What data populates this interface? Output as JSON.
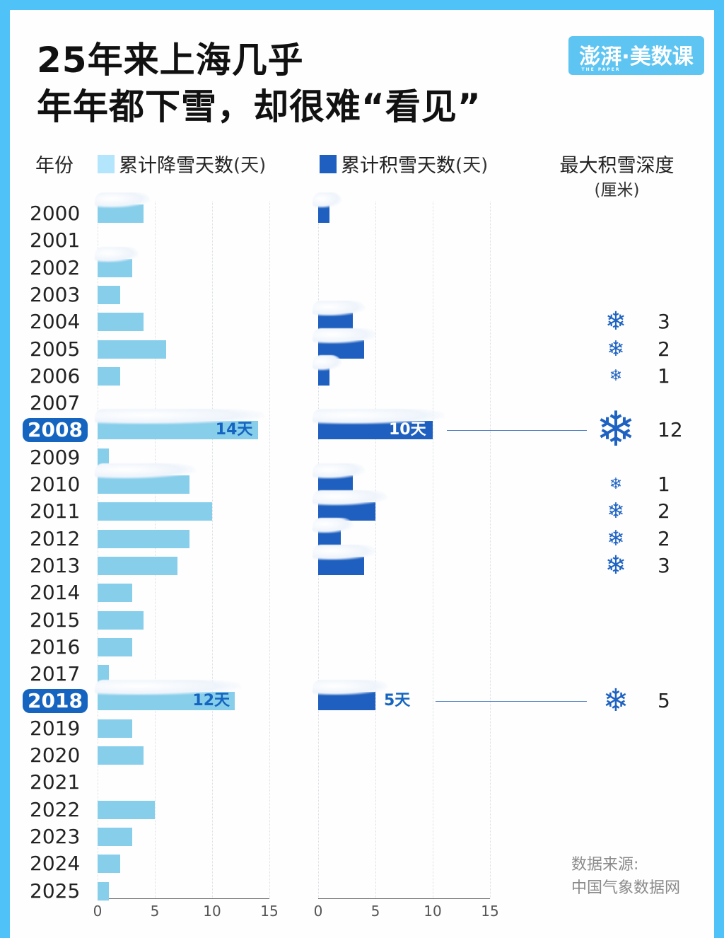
{
  "title": {
    "line1": "25年来上海几乎",
    "line2": "年年都下雪，却很难“看见”"
  },
  "logo": {
    "text": "澎湃·美数课",
    "sub": "THE PAPER"
  },
  "headers": {
    "year": "年份",
    "snowfall": "累计降雪天数",
    "snowfall_unit": "(天)",
    "cover": "累计积雪天数",
    "cover_unit": "(天)",
    "depth": "最大积雪深度",
    "depth_unit": "(厘米)"
  },
  "colors": {
    "snowfall": "#87ceeb",
    "cover": "#1e5fbf",
    "highlight": "#1565c0",
    "flake": "#1e63c2",
    "frame": "#4fc3f7"
  },
  "source": {
    "line1": "数据来源:",
    "line2": "中国气象数据网"
  },
  "chart_data": {
    "type": "bar",
    "title": "25年来上海几乎年年都下雪，却很难“看见”",
    "categories": [
      "2000",
      "2001",
      "2002",
      "2003",
      "2004",
      "2005",
      "2006",
      "2007",
      "2008",
      "2009",
      "2010",
      "2011",
      "2012",
      "2013",
      "2014",
      "2015",
      "2016",
      "2017",
      "2018",
      "2019",
      "2020",
      "2021",
      "2022",
      "2023",
      "2024",
      "2025"
    ],
    "series": [
      {
        "name": "累计降雪天数(天)",
        "values": [
          4,
          0,
          3,
          2,
          4,
          6,
          2,
          0,
          14,
          1,
          8,
          10,
          8,
          7,
          3,
          4,
          3,
          1,
          12,
          3,
          4,
          0,
          5,
          3,
          2,
          1
        ]
      },
      {
        "name": "累计积雪天数(天)",
        "values": [
          1,
          0,
          0,
          0,
          3,
          4,
          1,
          0,
          10,
          0,
          3,
          5,
          2,
          4,
          0,
          0,
          0,
          0,
          5,
          0,
          0,
          0,
          0,
          0,
          0,
          0
        ]
      },
      {
        "name": "最大积雪深度(厘米)",
        "values": [
          null,
          null,
          null,
          null,
          3,
          2,
          1,
          null,
          12,
          null,
          1,
          2,
          2,
          3,
          null,
          null,
          null,
          null,
          5,
          null,
          null,
          null,
          null,
          null,
          null,
          null
        ]
      }
    ],
    "highlight_years": [
      "2008",
      "2018"
    ],
    "annotations": [
      {
        "year": "2008",
        "snowfall_label": "14天",
        "cover_label": "10天",
        "depth": 12
      },
      {
        "year": "2018",
        "snowfall_label": "12天",
        "cover_label": "5天",
        "depth": 5
      }
    ],
    "xticks": [
      "0",
      "5",
      "10",
      "15"
    ],
    "xlim": [
      0,
      15
    ],
    "grid": true,
    "orientation": "horizontal",
    "legend_position": "top"
  }
}
